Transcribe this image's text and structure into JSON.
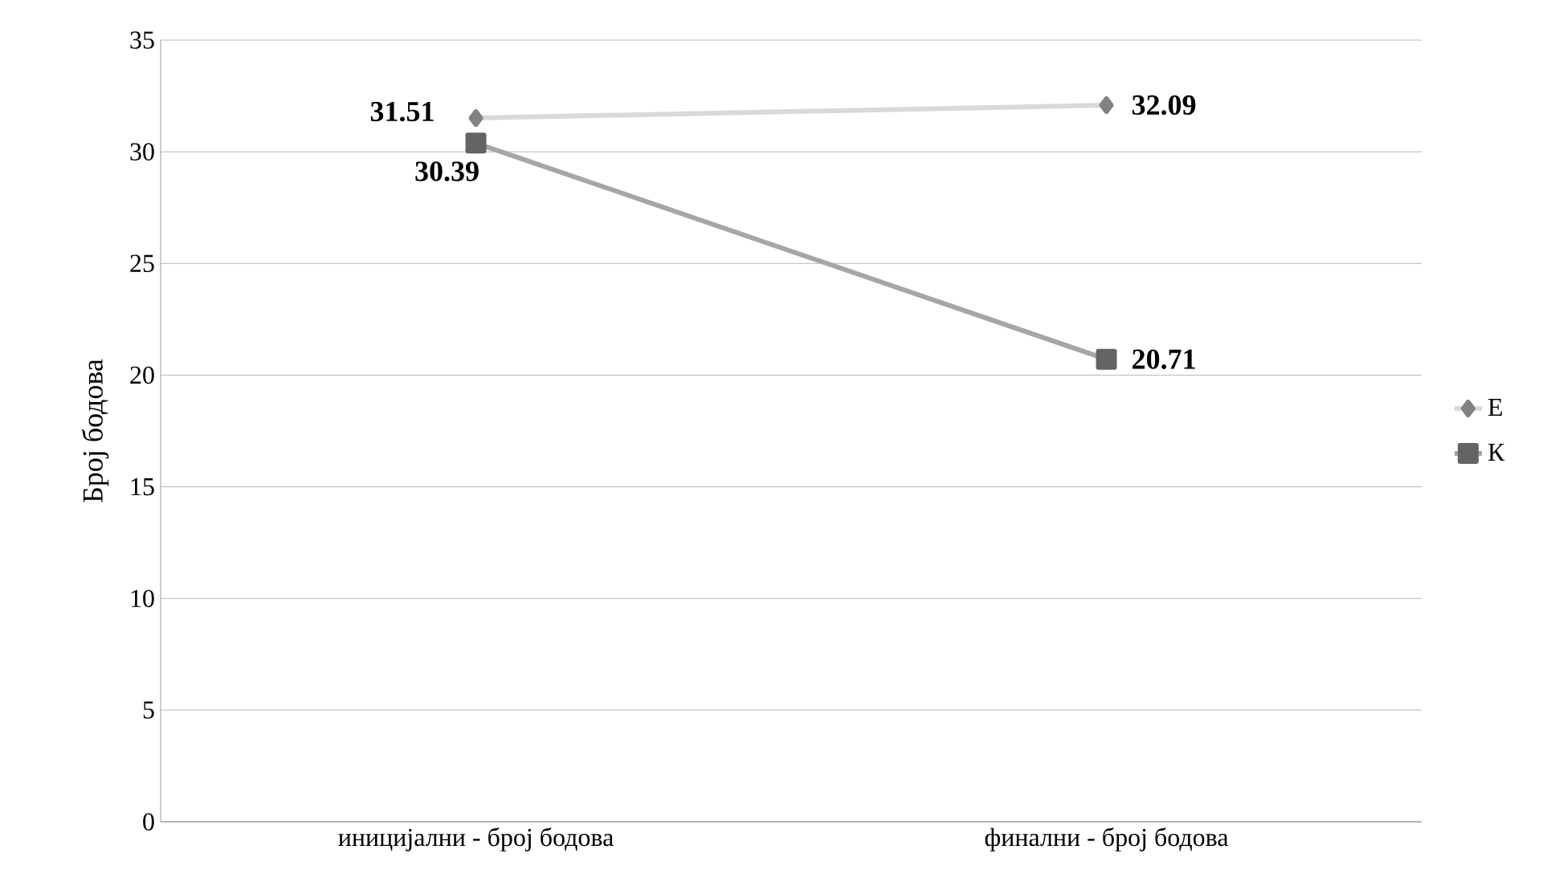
{
  "chart_data": {
    "type": "line",
    "ylabel": "Број бодова",
    "categories": [
      "иницијални - број бодова",
      "финални - број бодова"
    ],
    "series": [
      {
        "name": "Е",
        "color": "#d9d9d9",
        "marker": "diamond",
        "values": [
          31.51,
          32.09
        ]
      },
      {
        "name": "К",
        "color": "#a6a6a6",
        "marker": "square",
        "values": [
          30.39,
          20.71
        ]
      }
    ],
    "ylim": [
      0,
      35
    ],
    "yticks": [
      0,
      5,
      10,
      15,
      20,
      25,
      30,
      35
    ],
    "grid": "y",
    "legend": "right",
    "data_labels": true
  }
}
